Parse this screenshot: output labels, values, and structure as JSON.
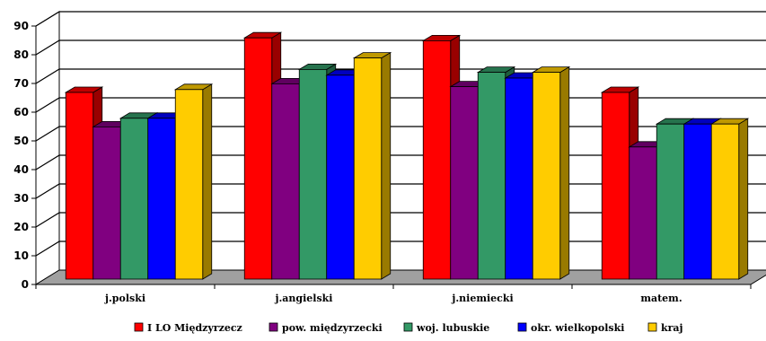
{
  "chart_data": {
    "type": "bar",
    "variant": "3d-clustered",
    "categories": [
      "j.polski",
      "j.angielski",
      "j.niemiecki",
      "matem."
    ],
    "series": [
      {
        "name": "I LO Międzyrzecz",
        "color": "#ff0000",
        "values": [
          65,
          84,
          83,
          65
        ]
      },
      {
        "name": "pow. międzyrzecki",
        "color": "#800080",
        "values": [
          53,
          68,
          67,
          46
        ]
      },
      {
        "name": "woj. lubuskie",
        "color": "#339966",
        "values": [
          56,
          73,
          72,
          54
        ]
      },
      {
        "name": "okr. wielkopolski",
        "color": "#0000ff",
        "values": [
          56,
          71,
          70,
          54
        ]
      },
      {
        "name": "kraj",
        "color": "#ffcc00",
        "values": [
          66,
          77,
          72,
          54
        ]
      }
    ],
    "ylim": [
      0,
      90
    ],
    "yticks": [
      0,
      10,
      20,
      30,
      40,
      50,
      60,
      70,
      80,
      90
    ],
    "grid": true,
    "legend_position": "bottom",
    "floor_color": "#a0a0a0"
  }
}
